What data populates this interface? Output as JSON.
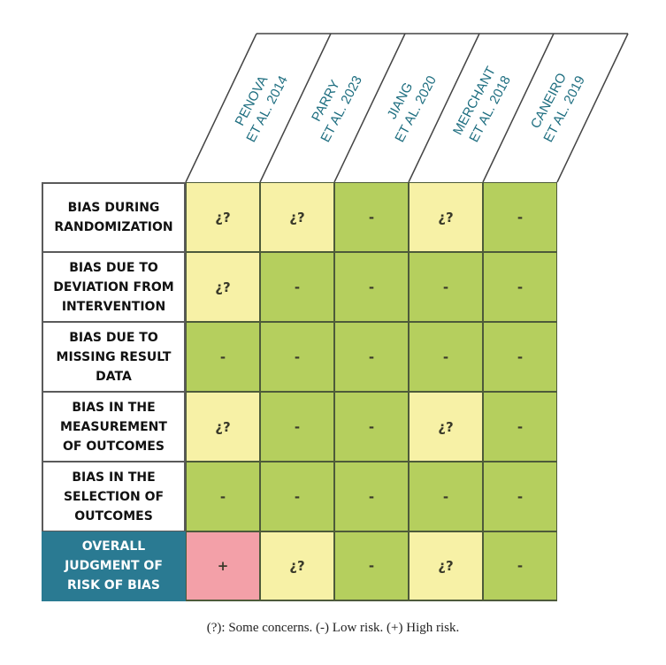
{
  "studies": [
    {
      "line1": "PENOVA",
      "line2": "ET AL. 2014"
    },
    {
      "line1": "PARRY",
      "line2": "ET AL. 2023"
    },
    {
      "line1": "JIANG",
      "line2": "ET AL. 2020"
    },
    {
      "line1": "MERCHANT",
      "line2": "ET AL. 2018"
    },
    {
      "line1": "CANEIRO",
      "line2": "ET AL. 2019"
    }
  ],
  "rows": [
    {
      "label": "BIAS DURING\nRANDOMIZATION",
      "cells": [
        "some",
        "some",
        "low",
        "some",
        "low"
      ]
    },
    {
      "label": "BIAS DUE TO\nDEVIATION FROM\nINTERVENTION",
      "cells": [
        "some",
        "low",
        "low",
        "low",
        "low"
      ]
    },
    {
      "label": "BIAS DUE TO\nMISSING RESULT\nDATA",
      "cells": [
        "low",
        "low",
        "low",
        "low",
        "low"
      ]
    },
    {
      "label": "BIAS IN THE\nMEASUREMENT\nOF OUTCOMES",
      "cells": [
        "some",
        "low",
        "low",
        "some",
        "low"
      ]
    },
    {
      "label": "BIAS IN THE\nSELECTION OF\nOUTCOMES",
      "cells": [
        "low",
        "low",
        "low",
        "low",
        "low"
      ]
    },
    {
      "label": "OVERALL\nJUDGMENT OF\nRISK OF BIAS",
      "cells": [
        "high",
        "some",
        "low",
        "some",
        "low"
      ],
      "overall": true
    }
  ],
  "symbols": {
    "some": "¿?",
    "low": "-",
    "high": "+"
  },
  "colors": {
    "some": "#f7f1a6",
    "low": "#b5cf5e",
    "high": "#f3a0a8",
    "overall_bg": "#2a7a92",
    "header_text": "#1e6e80"
  },
  "caption": "(?): Some concerns. (-) Low risk. (+) High risk."
}
